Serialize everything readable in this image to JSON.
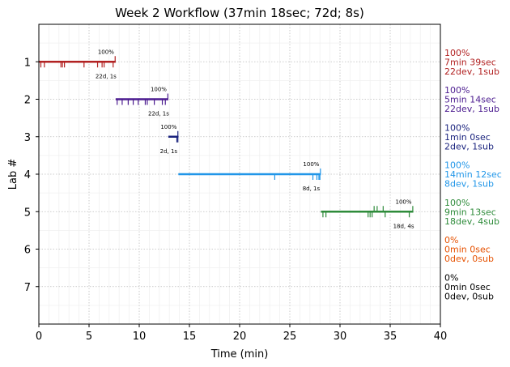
{
  "chart_data": {
    "type": "timeline",
    "title": "Week 2 Workflow (37min 18sec; 72d; 8s)",
    "xlabel": "Time (min)",
    "ylabel": "Lab #",
    "xlim": [
      0,
      40
    ],
    "ylim": [
      8,
      0
    ],
    "xticks": [
      "0",
      "5",
      "10",
      "15",
      "20",
      "25",
      "30",
      "35",
      "40"
    ],
    "yticks": [
      "1",
      "2",
      "3",
      "4",
      "5",
      "6",
      "7"
    ],
    "grid": true,
    "labs": [
      {
        "lab": 1,
        "color": "#b22222",
        "start": 0,
        "end": 7.65,
        "percent": "100%",
        "counts": "22d, 1s",
        "side": [
          "100%",
          "7min 39sec",
          "22dev, 1sub"
        ],
        "dev_ticks": [
          0.2,
          0.55,
          2.2,
          2.35,
          2.55,
          4.5,
          5.85,
          6.3,
          6.5,
          7.4
        ],
        "sub_ticks": [
          7.6
        ]
      },
      {
        "lab": 2,
        "color": "#4b1b8f",
        "start": 7.65,
        "end": 12.9,
        "percent": "100%",
        "counts": "22d, 1s",
        "side": [
          "100%",
          "5min 14sec",
          "22dev, 1sub"
        ],
        "dev_ticks": [
          7.8,
          8.3,
          8.9,
          9.4,
          9.9,
          10.6,
          10.8,
          11.5,
          12.3,
          12.6
        ],
        "sub_ticks": [
          12.85
        ]
      },
      {
        "lab": 3,
        "color": "#1a237e",
        "start": 12.9,
        "end": 13.9,
        "percent": "100%",
        "counts": "2d, 1s",
        "side": [
          "100%",
          "1min 0sec",
          "2dev, 1sub"
        ],
        "dev_ticks": [
          13.75,
          13.85
        ],
        "sub_ticks": [
          13.85
        ]
      },
      {
        "lab": 4,
        "color": "#2196e8",
        "start": 13.9,
        "end": 28.1,
        "percent": "100%",
        "counts": "8d, 1s",
        "side": [
          "100%",
          "14min 12sec",
          "8dev, 1sub"
        ],
        "dev_ticks": [
          23.5,
          27.3,
          27.7,
          27.9,
          28.0
        ],
        "sub_ticks": [
          28.05
        ]
      },
      {
        "lab": 5,
        "color": "#2e8b3a",
        "start": 28.1,
        "end": 37.3,
        "percent": "100%",
        "counts": "18d, 4s",
        "side": [
          "100%",
          "9min 13sec",
          "18dev, 4sub"
        ],
        "dev_ticks": [
          28.3,
          28.6,
          32.8,
          33.0,
          33.2,
          34.5,
          36.9
        ],
        "sub_ticks": [
          33.4,
          33.7,
          34.3,
          37.25
        ]
      },
      {
        "lab": 6,
        "color": "#e65100",
        "start": null,
        "end": null,
        "percent": "",
        "counts": "",
        "side": [
          "0%",
          "0min 0sec",
          "0dev, 0sub"
        ],
        "dev_ticks": [],
        "sub_ticks": []
      },
      {
        "lab": 7,
        "color": "#000000",
        "start": null,
        "end": null,
        "percent": "",
        "counts": "",
        "side": [
          "0%",
          "0min 0sec",
          "0dev, 0sub"
        ],
        "dev_ticks": [],
        "sub_ticks": []
      }
    ]
  }
}
